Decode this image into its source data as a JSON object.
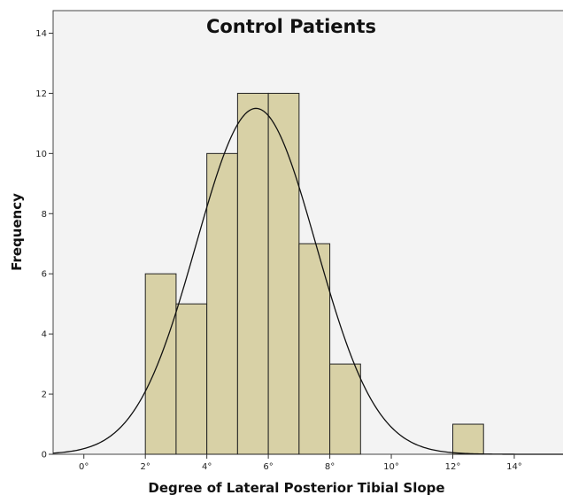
{
  "chart_data": {
    "type": "bar",
    "subtype": "histogram",
    "title": "Control Patients",
    "xlabel": "Degree of Lateral Posterior Tibial Slope",
    "ylabel": "Frequency",
    "xlim": [
      -1,
      15.7
    ],
    "ylim": [
      0,
      14.75
    ],
    "x_ticks": [
      0,
      2,
      4,
      6,
      8,
      10,
      12,
      14
    ],
    "x_tick_labels": [
      "0°",
      "2°",
      "4°",
      "6°",
      "8°",
      "10°",
      "12°",
      "14°"
    ],
    "y_ticks": [
      0,
      2,
      4,
      6,
      8,
      10,
      12,
      14
    ],
    "y_tick_labels": [
      "0",
      "2",
      "4",
      "6",
      "8",
      "10",
      "12",
      "14"
    ],
    "bins": [
      {
        "x0": 2,
        "x1": 3,
        "count": 6
      },
      {
        "x0": 3,
        "x1": 4,
        "count": 5
      },
      {
        "x0": 4,
        "x1": 5,
        "count": 10
      },
      {
        "x0": 5,
        "x1": 6,
        "count": 12
      },
      {
        "x0": 6,
        "x1": 7,
        "count": 12
      },
      {
        "x0": 7,
        "x1": 8,
        "count": 7
      },
      {
        "x0": 8,
        "x1": 9,
        "count": 3
      },
      {
        "x0": 12,
        "x1": 13,
        "count": 1
      }
    ],
    "normal_curve": {
      "mean": 5.6,
      "sd": 1.95,
      "peak": 11.5
    },
    "colors": {
      "bar_fill": "#d8d1a6",
      "bar_stroke": "#222222",
      "plot_background": "#f3f3f3",
      "curve": "#111111"
    }
  }
}
